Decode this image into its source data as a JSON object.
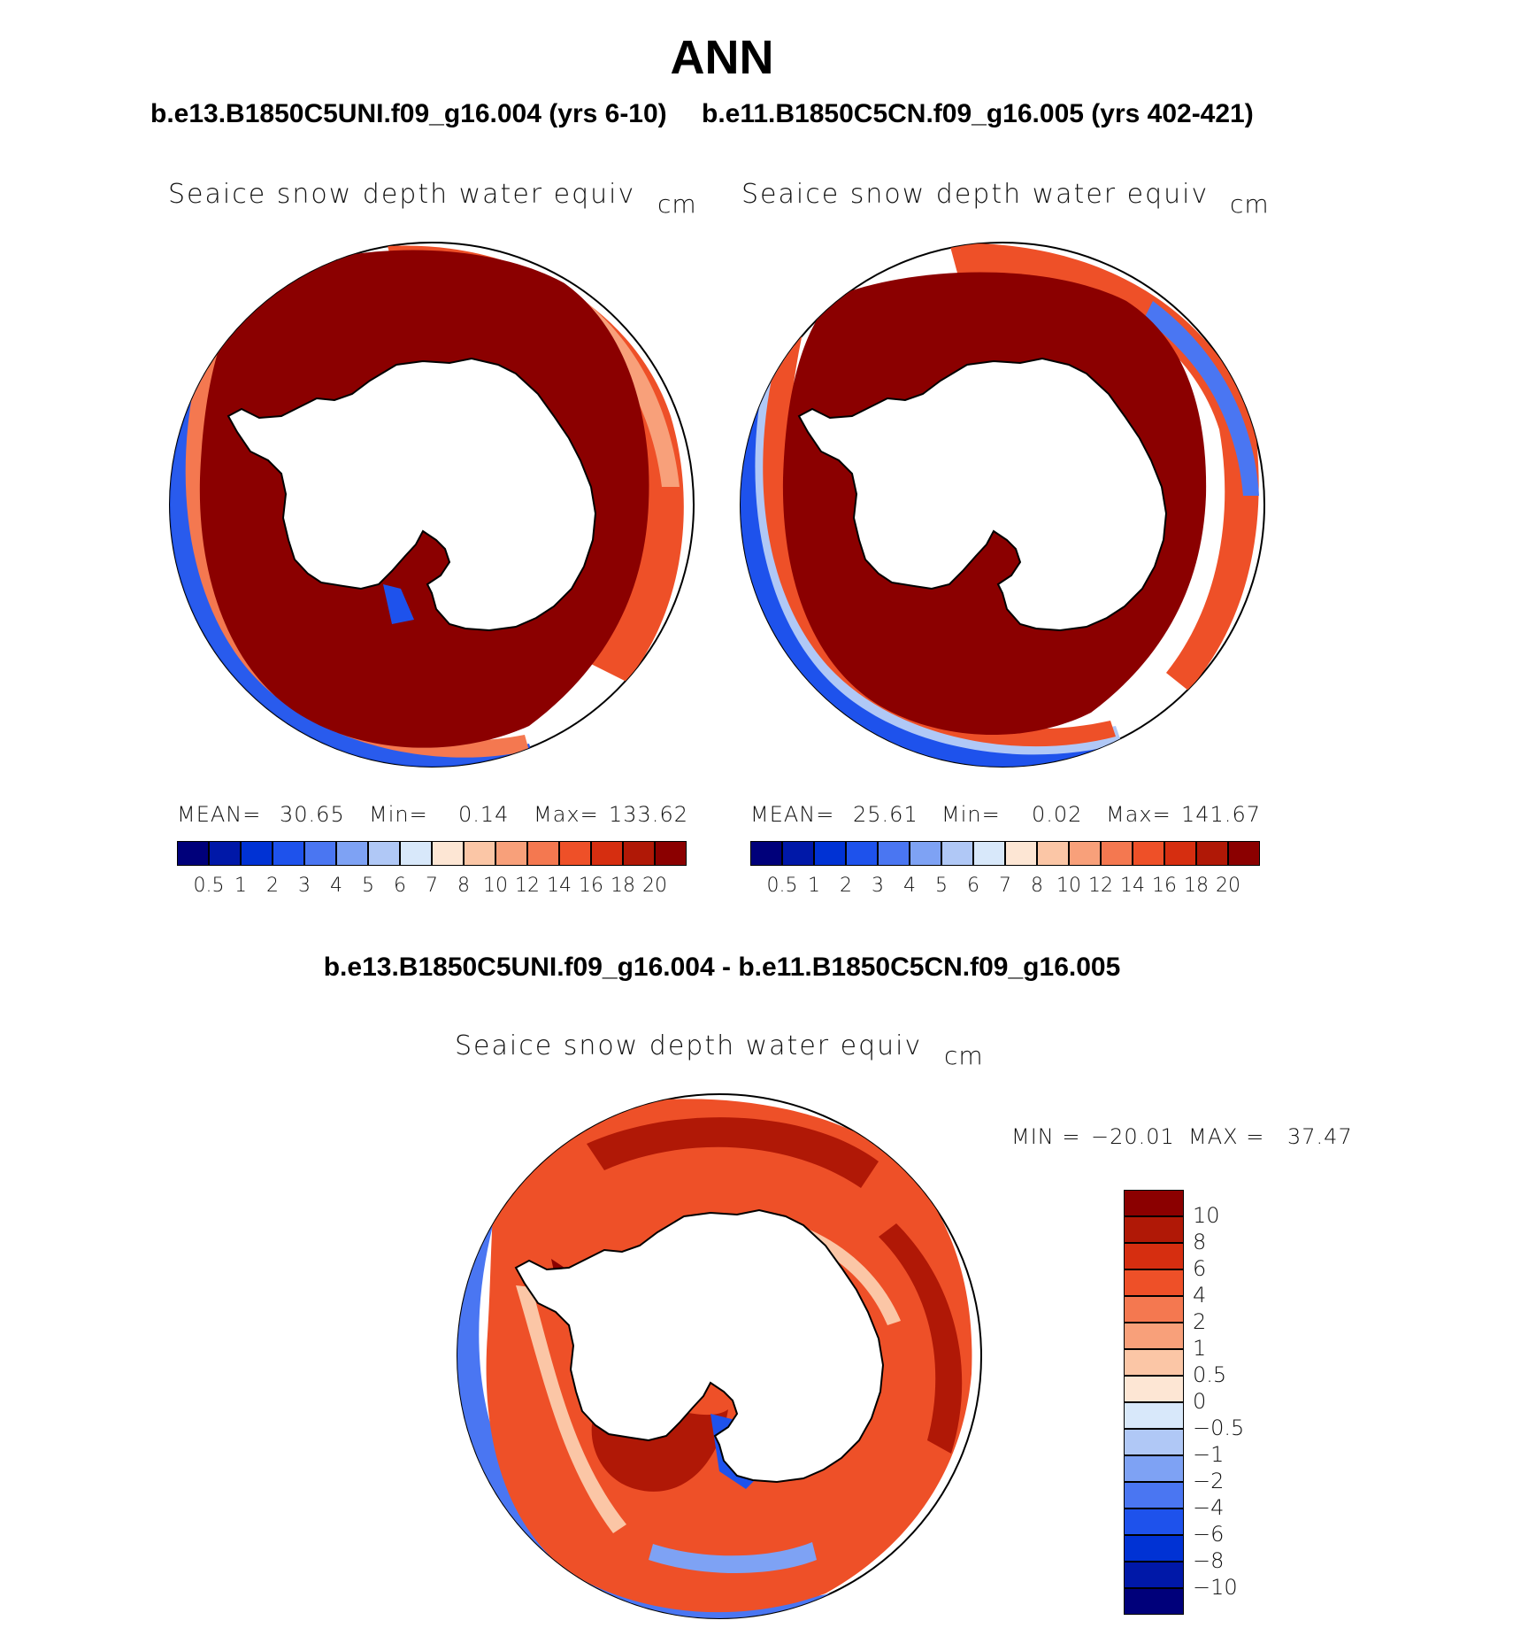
{
  "title": "ANN",
  "panels": [
    {
      "case_title": "b.e13.B1850C5UNI.f09_g16.004 (yrs 6-10)",
      "variable": "Seaice snow depth water equiv",
      "units": "cm",
      "stats": {
        "mean_label": "MEAN=",
        "mean": "30.65",
        "min_label": "Min=",
        "min": "0.14",
        "max_label": "Max=",
        "max": "133.62"
      }
    },
    {
      "case_title": "b.e11.B1850C5CN.f09_g16.005 (yrs 402-421)",
      "variable": "Seaice snow depth water equiv",
      "units": "cm",
      "stats": {
        "mean_label": "MEAN=",
        "mean": "25.61",
        "min_label": "Min=",
        "min": "0.02",
        "max_label": "Max=",
        "max": "141.67"
      }
    }
  ],
  "colorbar_abs": {
    "labels": [
      "0.5",
      "1",
      "2",
      "3",
      "4",
      "5",
      "6",
      "7",
      "8",
      "10",
      "12",
      "14",
      "16",
      "18",
      "20"
    ],
    "colors": [
      "#00007a",
      "#0018a8",
      "#0032d4",
      "#1e52ec",
      "#4a76f2",
      "#7ea2f4",
      "#b0c8f6",
      "#d8e8fa",
      "#fde6d4",
      "#fbc6a6",
      "#f8a07a",
      "#f47850",
      "#ee5028",
      "#d62e10",
      "#b01806",
      "#8b0000"
    ]
  },
  "difference": {
    "title": "b.e13.B1850C5UNI.f09_g16.004 - b.e11.B1850C5CN.f09_g16.005",
    "variable": "Seaice snow depth water equiv",
    "units": "cm",
    "stats": {
      "min_label": "MIN =",
      "min": "−20.01",
      "max_label": "MAX =",
      "max": "37.47"
    },
    "colorbar": {
      "labels": [
        "10",
        "8",
        "6",
        "4",
        "2",
        "1",
        "0.5",
        "0",
        "−0.5",
        "−1",
        "−2",
        "−4",
        "−6",
        "−8",
        "−10"
      ],
      "colors": [
        "#8b0000",
        "#b01806",
        "#d62e10",
        "#ee5028",
        "#f47850",
        "#f8a07a",
        "#fbc6a6",
        "#fde6d4",
        "#d8e8fa",
        "#b0c8f6",
        "#7ea2f4",
        "#4a76f2",
        "#1e52ec",
        "#0032d4",
        "#0018a8",
        "#00007a"
      ]
    }
  }
}
